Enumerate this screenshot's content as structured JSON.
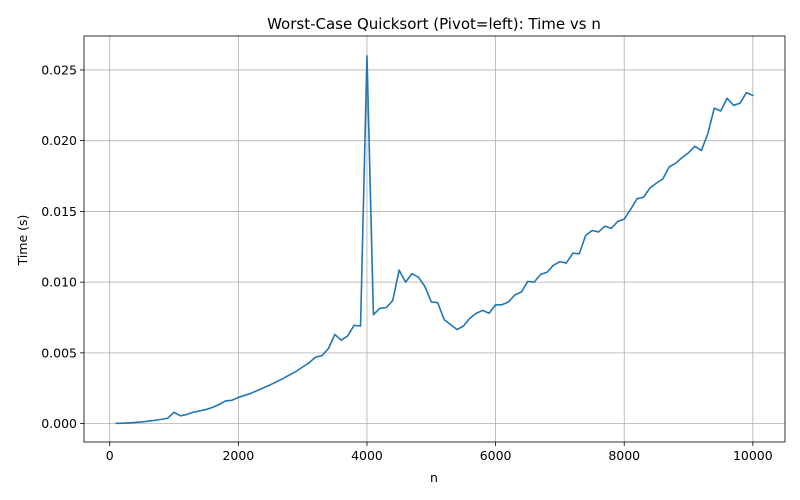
{
  "chart_data": {
    "type": "line",
    "title": "Worst-Case Quicksort (Pivot=left): Time vs n",
    "xlabel": "n",
    "ylabel": "Time (s)",
    "xlim": [
      -400,
      10500
    ],
    "ylim": [
      -0.0013,
      0.0274
    ],
    "grid": true,
    "line_color": "#1f77b4",
    "x_ticks": [
      0,
      2000,
      4000,
      6000,
      8000,
      10000
    ],
    "x_tick_labels": [
      "0",
      "2000",
      "4000",
      "6000",
      "8000",
      "10000"
    ],
    "y_ticks": [
      0,
      0.005,
      0.01,
      0.015,
      0.02,
      0.025
    ],
    "y_tick_labels": [
      "0.000",
      "0.005",
      "0.010",
      "0.015",
      "0.020",
      "0.025"
    ],
    "series": [
      {
        "x": [
          100,
          200,
          300,
          400,
          500,
          600,
          700,
          800,
          900,
          1000,
          1100,
          1200,
          1300,
          1400,
          1500,
          1600,
          1700,
          1800,
          1900,
          2000,
          2100,
          2200,
          2300,
          2400,
          2500,
          2600,
          2700,
          2800,
          2900,
          3000,
          3100,
          3200,
          3300,
          3400,
          3500,
          3600,
          3700,
          3800,
          3900,
          4000,
          4100,
          4200,
          4300,
          4400,
          4500,
          4600,
          4700,
          4800,
          4900,
          5000,
          5100,
          5200,
          5300,
          5400,
          5500,
          5600,
          5700,
          5800,
          5900,
          6000,
          6100,
          6200,
          6300,
          6400,
          6500,
          6600,
          6700,
          6800,
          6900,
          7000,
          7100,
          7200,
          7300,
          7400,
          7500,
          7600,
          7700,
          7800,
          7900,
          8000,
          8100,
          8200,
          8300,
          8400,
          8500,
          8600,
          8700,
          8800,
          8900,
          9000,
          9100,
          9200,
          9300,
          9400,
          9500,
          9600,
          9700,
          9800,
          9900,
          10000
        ],
        "y": [
          2e-05,
          3e-05,
          5e-05,
          8e-05,
          0.00012,
          0.00017,
          0.00023,
          0.0003,
          0.00038,
          0.0008,
          0.00055,
          0.00065,
          0.0008,
          0.0009,
          0.001,
          0.00115,
          0.00135,
          0.0016,
          0.00165,
          0.00185,
          0.002,
          0.00215,
          0.00235,
          0.00255,
          0.00275,
          0.00297,
          0.0032,
          0.00345,
          0.0037,
          0.004,
          0.0043,
          0.0047,
          0.0048,
          0.0053,
          0.0063,
          0.0059,
          0.0062,
          0.00695,
          0.0069,
          0.026,
          0.0077,
          0.00815,
          0.0082,
          0.0087,
          0.01085,
          0.01,
          0.0106,
          0.01035,
          0.0097,
          0.0086,
          0.00855,
          0.00735,
          0.007,
          0.00665,
          0.0069,
          0.00745,
          0.0078,
          0.008,
          0.0078,
          0.0084,
          0.0084,
          0.0086,
          0.0091,
          0.0093,
          0.01005,
          0.01,
          0.01055,
          0.0107,
          0.0112,
          0.01145,
          0.01135,
          0.01205,
          0.012,
          0.0133,
          0.01365,
          0.01355,
          0.01395,
          0.0138,
          0.0143,
          0.01445,
          0.01515,
          0.0159,
          0.016,
          0.01665,
          0.017,
          0.0173,
          0.01815,
          0.0184,
          0.0188,
          0.01915,
          0.0196,
          0.0193,
          0.0205,
          0.0223,
          0.0221,
          0.023,
          0.0225,
          0.02265,
          0.0234,
          0.0232
        ]
      }
    ]
  }
}
